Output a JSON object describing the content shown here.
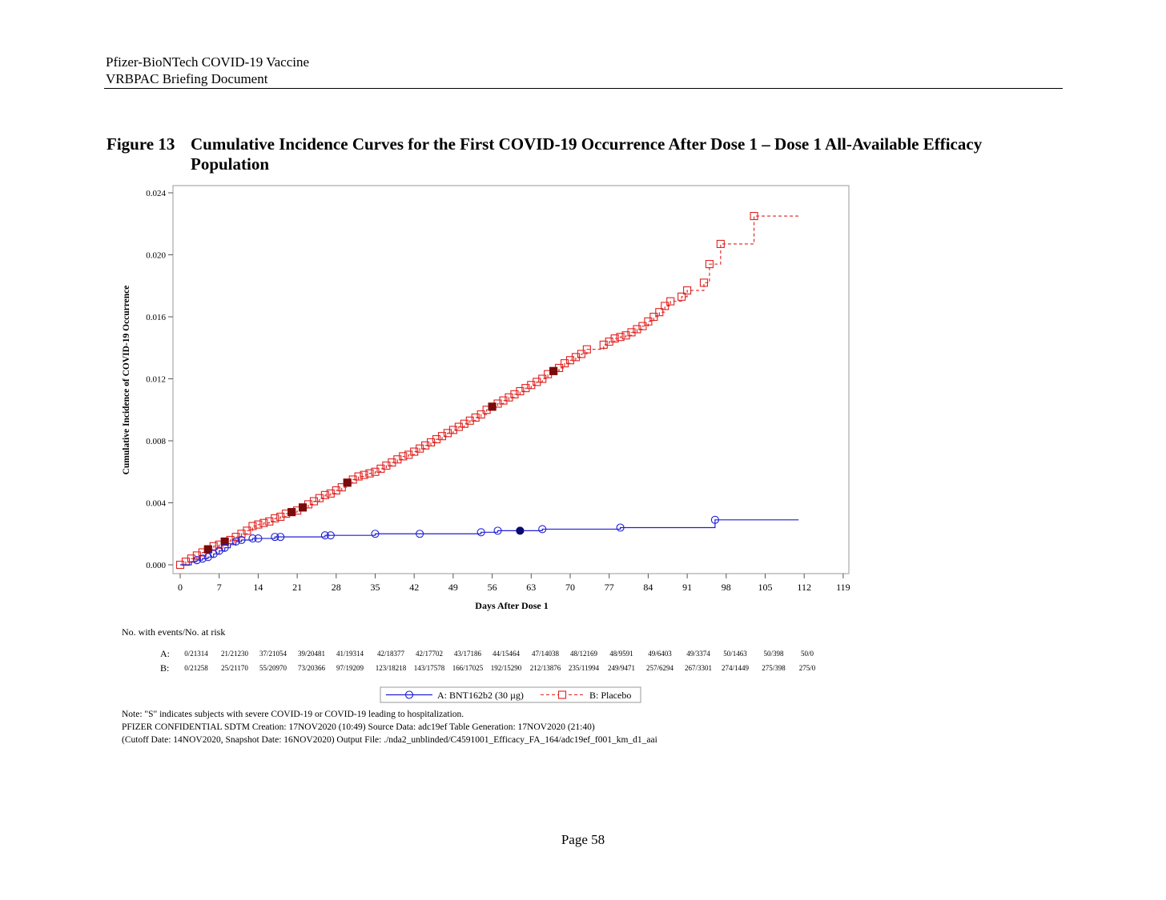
{
  "header": {
    "line1": "Pfizer-BioNTech COVID-19 Vaccine",
    "line2": "VRBPAC Briefing Document"
  },
  "figure": {
    "label": "Figure 13",
    "title": "Cumulative Incidence Curves for the First COVID-19 Occurrence After Dose 1 – Dose 1 All-Available Efficacy Population"
  },
  "chart_data": {
    "type": "line",
    "title": "",
    "xlabel": "Days After Dose 1",
    "ylabel": "Cumulative Incidence of COVID-19 Occurrence",
    "xlim": [
      -1.5,
      120.5
    ],
    "ylim": [
      -0.00055,
      0.0245
    ],
    "x_ticks": [
      0,
      7,
      14,
      21,
      28,
      35,
      42,
      49,
      56,
      63,
      70,
      77,
      84,
      91,
      98,
      105,
      112,
      119
    ],
    "y_ticks": [
      0.0,
      0.004,
      0.008,
      0.012,
      0.016,
      0.02,
      0.024
    ],
    "y_tick_labels": [
      "0.000",
      "0.004",
      "0.008",
      "0.012",
      "0.016",
      "0.020",
      "0.024"
    ],
    "series": [
      {
        "name": "A: BNT162b2 (30 µg)",
        "color": "#1f1fd6",
        "style": "solid",
        "marker": "circle",
        "points": [
          [
            0,
            0
          ],
          [
            2,
            0.0002
          ],
          [
            3,
            0.0003
          ],
          [
            4,
            0.0004
          ],
          [
            5,
            0.0005
          ],
          [
            6,
            0.0007
          ],
          [
            7,
            0.0009
          ],
          [
            8,
            0.0011
          ],
          [
            9,
            0.0013
          ],
          [
            10,
            0.0015
          ],
          [
            11,
            0.0016
          ],
          [
            13,
            0.0017
          ],
          [
            14,
            0.0017
          ],
          [
            17,
            0.0018
          ],
          [
            18,
            0.0018
          ],
          [
            26,
            0.0019
          ],
          [
            27,
            0.0019
          ],
          [
            35,
            0.002
          ],
          [
            43,
            0.002
          ],
          [
            54,
            0.0021
          ],
          [
            57,
            0.0022
          ],
          [
            61,
            0.0022
          ],
          [
            65,
            0.0023
          ],
          [
            79,
            0.0024
          ],
          [
            96,
            0.0029
          ],
          [
            111,
            0.0029
          ]
        ],
        "markers_x": [
          3,
          4,
          5,
          6,
          7,
          8,
          10,
          11,
          13,
          14,
          17,
          18,
          26,
          27,
          35,
          43,
          54,
          57,
          61,
          65,
          79,
          96
        ],
        "severe_x": [
          61
        ]
      },
      {
        "name": "B: Placebo",
        "color": "#e0201e",
        "style": "dashed",
        "marker": "square",
        "points": [
          [
            0,
            0
          ],
          [
            1,
            0.0002
          ],
          [
            2,
            0.0004
          ],
          [
            3,
            0.0006
          ],
          [
            4,
            0.0008
          ],
          [
            5,
            0.001
          ],
          [
            6,
            0.0012
          ],
          [
            7,
            0.0013
          ],
          [
            8,
            0.0015
          ],
          [
            9,
            0.0016
          ],
          [
            10,
            0.0018
          ],
          [
            11,
            0.002
          ],
          [
            12,
            0.0022
          ],
          [
            13,
            0.0025
          ],
          [
            14,
            0.0026
          ],
          [
            15,
            0.0027
          ],
          [
            16,
            0.0028
          ],
          [
            17,
            0.003
          ],
          [
            18,
            0.0031
          ],
          [
            19,
            0.0033
          ],
          [
            20,
            0.0034
          ],
          [
            21,
            0.0035
          ],
          [
            22,
            0.0037
          ],
          [
            23,
            0.0039
          ],
          [
            24,
            0.0041
          ],
          [
            25,
            0.0043
          ],
          [
            26,
            0.0045
          ],
          [
            27,
            0.0046
          ],
          [
            28,
            0.0048
          ],
          [
            29,
            0.005
          ],
          [
            30,
            0.0053
          ],
          [
            31,
            0.0055
          ],
          [
            32,
            0.0057
          ],
          [
            33,
            0.0058
          ],
          [
            34,
            0.0059
          ],
          [
            35,
            0.006
          ],
          [
            36,
            0.0062
          ],
          [
            37,
            0.0064
          ],
          [
            38,
            0.0066
          ],
          [
            39,
            0.0068
          ],
          [
            40,
            0.007
          ],
          [
            41,
            0.0071
          ],
          [
            42,
            0.0073
          ],
          [
            43,
            0.0075
          ],
          [
            44,
            0.0077
          ],
          [
            45,
            0.0079
          ],
          [
            46,
            0.0081
          ],
          [
            47,
            0.0083
          ],
          [
            48,
            0.0085
          ],
          [
            49,
            0.0087
          ],
          [
            50,
            0.0089
          ],
          [
            51,
            0.0091
          ],
          [
            52,
            0.0093
          ],
          [
            53,
            0.0095
          ],
          [
            54,
            0.0097
          ],
          [
            55,
            0.01
          ],
          [
            56,
            0.0102
          ],
          [
            57,
            0.0104
          ],
          [
            58,
            0.0106
          ],
          [
            59,
            0.0108
          ],
          [
            60,
            0.011
          ],
          [
            61,
            0.0112
          ],
          [
            62,
            0.0114
          ],
          [
            63,
            0.0116
          ],
          [
            64,
            0.0118
          ],
          [
            65,
            0.012
          ],
          [
            66,
            0.0123
          ],
          [
            67,
            0.0125
          ],
          [
            68,
            0.0127
          ],
          [
            69,
            0.013
          ],
          [
            70,
            0.0132
          ],
          [
            71,
            0.0134
          ],
          [
            72,
            0.0136
          ],
          [
            73,
            0.0139
          ],
          [
            76,
            0.0142
          ],
          [
            77,
            0.0144
          ],
          [
            78,
            0.0146
          ],
          [
            79,
            0.0147
          ],
          [
            80,
            0.0148
          ],
          [
            81,
            0.015
          ],
          [
            82,
            0.0152
          ],
          [
            83,
            0.0154
          ],
          [
            84,
            0.0157
          ],
          [
            85,
            0.016
          ],
          [
            86,
            0.0163
          ],
          [
            87,
            0.0167
          ],
          [
            88,
            0.017
          ],
          [
            90,
            0.0173
          ],
          [
            91,
            0.0177
          ],
          [
            94,
            0.0182
          ],
          [
            95,
            0.0194
          ],
          [
            97,
            0.0207
          ],
          [
            103,
            0.0225
          ],
          [
            111,
            0.0225
          ]
        ],
        "severe_x": [
          5,
          8,
          20,
          22,
          30,
          56,
          67
        ]
      }
    ],
    "at_risk": {
      "heading": "No. with events/No. at risk",
      "labels": [
        "A:",
        "B:"
      ],
      "A": [
        "0/21314",
        "21/21230",
        "37/21054",
        "39/20481",
        "41/19314",
        "42/18377",
        "42/17702",
        "43/17186",
        "44/15464",
        "47/14038",
        "48/12169",
        "48/9591",
        "49/6403",
        "49/3374",
        "50/1463",
        "50/398",
        "50/0"
      ],
      "B": [
        "0/21258",
        "25/21170",
        "55/20970",
        "73/20366",
        "97/19209",
        "123/18218",
        "143/17578",
        "166/17025",
        "192/15290",
        "212/13876",
        "235/11994",
        "249/9471",
        "257/6294",
        "267/3301",
        "274/1449",
        "275/398",
        "275/0"
      ]
    },
    "legend": [
      "A: BNT162b2 (30 µg)",
      "B: Placebo"
    ]
  },
  "notes": {
    "line1": "Note: \"S\" indicates subjects with severe COVID-19 or COVID-19 leading to hospitalization.",
    "line2": "PFIZER CONFIDENTIAL  SDTM Creation: 17NOV2020 (10:49)  Source Data: adc19ef  Table Generation: 17NOV2020 (21:40)",
    "line3": "(Cutoff Date: 14NOV2020, Snapshot Date: 16NOV2020) Output File: ./nda2_unblinded/C4591001_Efficacy_FA_164/adc19ef_f001_km_d1_aai"
  },
  "page": {
    "label": "Page 58"
  }
}
